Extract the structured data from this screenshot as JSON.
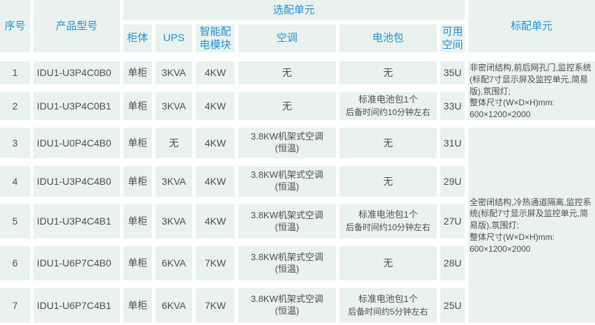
{
  "colors": {
    "page_bg": "#ffffff",
    "cell_bg": "#eaf2f0",
    "header_text": "#2191d3",
    "body_text": "#4d4d4d"
  },
  "table": {
    "headers": {
      "serial": "序号",
      "model": "产品型号",
      "optional_group": "选配单元",
      "cabinet": "柜体",
      "ups": "UPS",
      "pdu": "智能配电模块",
      "ac": "空调",
      "battery": "电池包",
      "space": "可用空间",
      "standard": "标配单元"
    },
    "rows": [
      {
        "no": "1",
        "model": "IDU1-U3P4C0B0",
        "cabinet": "单柜",
        "ups": "3KVA",
        "pdu": "4KW",
        "ac": [
          "无"
        ],
        "battery": [
          "无"
        ],
        "space": "35U"
      },
      {
        "no": "2",
        "model": "IDU1-U3P4C0B1",
        "cabinet": "单柜",
        "ups": "3KVA",
        "pdu": "4KW",
        "ac": [
          "无"
        ],
        "battery": [
          "标准电池包1个",
          "后备时间约10分钟左右"
        ],
        "space": "33U"
      },
      {
        "no": "3",
        "model": "IDU1-U0P4C4B0",
        "cabinet": "单柜",
        "ups": "无",
        "pdu": "4KW",
        "ac": [
          "3.8KW机架式空调",
          "(恒温)"
        ],
        "battery": [
          "无"
        ],
        "space": "31U"
      },
      {
        "no": "4",
        "model": "IDU1-U3P4C4B0",
        "cabinet": "单柜",
        "ups": "3KVA",
        "pdu": "4KW",
        "ac": [
          "3.8KW机架式空调",
          "(恒温)"
        ],
        "battery": [
          "无"
        ],
        "space": "29U"
      },
      {
        "no": "5",
        "model": "IDU1-U3P4C4B1",
        "cabinet": "单柜",
        "ups": "3KVA",
        "pdu": "4KW",
        "ac": [
          "3.8KW机架式空调",
          "(恒温)"
        ],
        "battery": [
          "标准电池包1个",
          "后备时间约10分钟左右"
        ],
        "space": "27U"
      },
      {
        "no": "6",
        "model": "IDU1-U6P7C4B0",
        "cabinet": "单柜",
        "ups": "6KVA",
        "pdu": "7KW",
        "ac": [
          "3.8KW机架式空调",
          "(恒温)"
        ],
        "battery": [
          "无"
        ],
        "space": "28U"
      },
      {
        "no": "7",
        "model": "IDU1-U6P7C4B1",
        "cabinet": "单柜",
        "ups": "6KVA",
        "pdu": "7KW",
        "ac": [
          "3.8KW机架式空调",
          "(恒温)"
        ],
        "battery": [
          "标准电池包1个",
          "后备时间约5分钟左右"
        ],
        "space": "25U"
      }
    ],
    "standard_units": [
      {
        "text": "非密闭结构,前后网孔门,监控系统(标配7寸显示屏及监控单元,简易版),氛围灯;\n整体尺寸(W×D×H)mm:\n600×1200×2000"
      },
      {
        "text": "全密闭结构,冷热通道隔离,监控系统(标配7寸显示屏及监控单元,简易版),氛围灯;\n整体尺寸(W×D×H)mm:\n600×1200×2000"
      }
    ]
  }
}
